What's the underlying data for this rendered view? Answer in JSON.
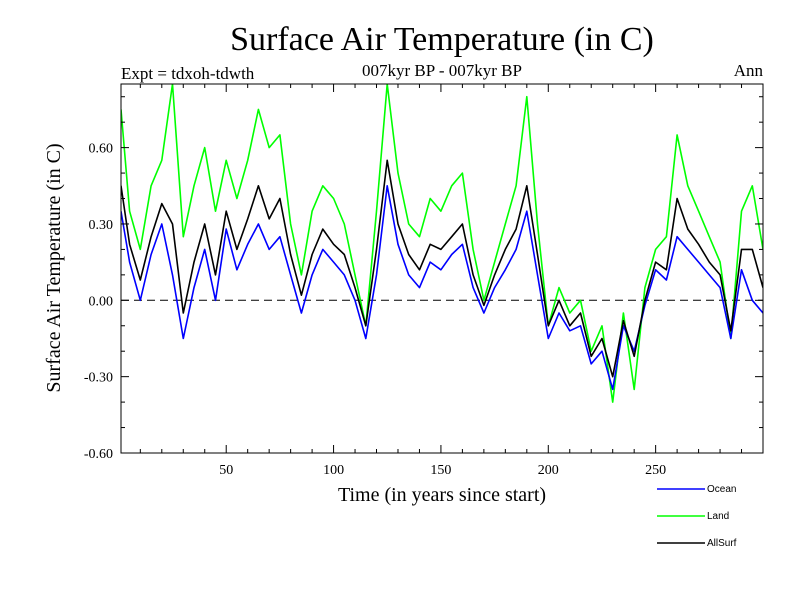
{
  "chart_data": {
    "type": "line",
    "title": "Surface Air Temperature (in C)",
    "subtitle": "007kyr BP - 007kyr BP",
    "expt_label": "Expt = tdxoh-tdwth",
    "season_label": "Ann",
    "xlabel": "Time (in years since start)",
    "ylabel": "Surface Air Temperature (in C)",
    "xlim": [
      1,
      300
    ],
    "ylim": [
      -0.6,
      0.85
    ],
    "xticks": [
      50,
      100,
      150,
      200,
      250
    ],
    "xtick_labels": [
      "50",
      "100",
      "150",
      "200",
      "250"
    ],
    "yticks": [
      -0.6,
      -0.3,
      0.0,
      0.3,
      0.6
    ],
    "ytick_labels": [
      "-0.60",
      "-0.30",
      "0.00",
      "0.30",
      "0.60"
    ],
    "zero_line": true,
    "series": [
      {
        "name": "Ocean",
        "color": "#0000ff",
        "x": [
          1,
          5,
          10,
          15,
          20,
          25,
          30,
          35,
          40,
          45,
          50,
          55,
          60,
          65,
          70,
          75,
          80,
          85,
          90,
          95,
          100,
          105,
          110,
          115,
          120,
          125,
          130,
          135,
          140,
          145,
          150,
          155,
          160,
          165,
          170,
          175,
          180,
          185,
          190,
          195,
          200,
          205,
          210,
          215,
          220,
          225,
          230,
          235,
          240,
          245,
          250,
          255,
          260,
          265,
          270,
          275,
          280,
          285,
          290,
          295,
          300
        ],
        "values": [
          0.35,
          0.15,
          0.0,
          0.18,
          0.3,
          0.1,
          -0.15,
          0.05,
          0.2,
          0.0,
          0.28,
          0.12,
          0.22,
          0.3,
          0.2,
          0.25,
          0.1,
          -0.05,
          0.1,
          0.2,
          0.15,
          0.1,
          0.0,
          -0.15,
          0.1,
          0.45,
          0.22,
          0.1,
          0.05,
          0.15,
          0.12,
          0.18,
          0.22,
          0.05,
          -0.05,
          0.05,
          0.12,
          0.2,
          0.35,
          0.1,
          -0.15,
          -0.05,
          -0.12,
          -0.1,
          -0.25,
          -0.2,
          -0.35,
          -0.1,
          -0.2,
          -0.02,
          0.12,
          0.08,
          0.25,
          0.2,
          0.15,
          0.1,
          0.05,
          -0.15,
          0.12,
          0.0,
          -0.05
        ]
      },
      {
        "name": "Land",
        "color": "#00ff00",
        "x": [
          1,
          5,
          10,
          15,
          20,
          25,
          30,
          35,
          40,
          45,
          50,
          55,
          60,
          65,
          70,
          75,
          80,
          85,
          90,
          95,
          100,
          105,
          110,
          115,
          120,
          125,
          130,
          135,
          140,
          145,
          150,
          155,
          160,
          165,
          170,
          175,
          180,
          185,
          190,
          195,
          200,
          205,
          210,
          215,
          220,
          225,
          230,
          235,
          240,
          245,
          250,
          255,
          260,
          265,
          270,
          275,
          280,
          285,
          290,
          295,
          300
        ],
        "values": [
          0.75,
          0.35,
          0.2,
          0.45,
          0.55,
          0.85,
          0.25,
          0.45,
          0.6,
          0.35,
          0.55,
          0.4,
          0.55,
          0.75,
          0.6,
          0.65,
          0.3,
          0.1,
          0.35,
          0.45,
          0.4,
          0.3,
          0.1,
          -0.1,
          0.35,
          0.85,
          0.5,
          0.3,
          0.25,
          0.4,
          0.35,
          0.45,
          0.5,
          0.2,
          0.0,
          0.15,
          0.3,
          0.45,
          0.8,
          0.3,
          -0.1,
          0.05,
          -0.05,
          0.0,
          -0.2,
          -0.1,
          -0.4,
          -0.05,
          -0.35,
          0.05,
          0.2,
          0.25,
          0.65,
          0.45,
          0.35,
          0.25,
          0.15,
          -0.15,
          0.35,
          0.45,
          0.2
        ]
      },
      {
        "name": "AllSurf",
        "color": "#000000",
        "x": [
          1,
          5,
          10,
          15,
          20,
          25,
          30,
          35,
          40,
          45,
          50,
          55,
          60,
          65,
          70,
          75,
          80,
          85,
          90,
          95,
          100,
          105,
          110,
          115,
          120,
          125,
          130,
          135,
          140,
          145,
          150,
          155,
          160,
          165,
          170,
          175,
          180,
          185,
          190,
          195,
          200,
          205,
          210,
          215,
          220,
          225,
          230,
          235,
          240,
          245,
          250,
          255,
          260,
          265,
          270,
          275,
          280,
          285,
          290,
          295,
          300
        ],
        "values": [
          0.45,
          0.22,
          0.08,
          0.25,
          0.38,
          0.3,
          -0.05,
          0.15,
          0.3,
          0.1,
          0.35,
          0.2,
          0.32,
          0.45,
          0.32,
          0.4,
          0.18,
          0.02,
          0.18,
          0.28,
          0.22,
          0.18,
          0.05,
          -0.1,
          0.2,
          0.55,
          0.3,
          0.18,
          0.12,
          0.22,
          0.2,
          0.25,
          0.3,
          0.1,
          -0.02,
          0.1,
          0.2,
          0.28,
          0.45,
          0.18,
          -0.1,
          0.0,
          -0.1,
          -0.05,
          -0.22,
          -0.15,
          -0.3,
          -0.08,
          -0.22,
          0.0,
          0.15,
          0.12,
          0.4,
          0.28,
          0.22,
          0.15,
          0.1,
          -0.12,
          0.2,
          0.2,
          0.05
        ]
      }
    ]
  }
}
